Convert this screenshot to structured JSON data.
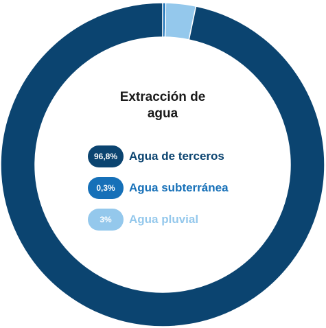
{
  "chart_data": {
    "type": "donut",
    "title": "Extracción de agua",
    "series": [
      {
        "name": "Agua de terceros",
        "color": "#0b4470",
        "values": [
          96.8
        ],
        "value_labels": [
          "96,8%"
        ]
      },
      {
        "name": "Agua subterránea",
        "color": "#1670b8",
        "values": [
          0.3
        ],
        "value_labels": [
          "0,3%"
        ]
      },
      {
        "name": "Agua pluvial",
        "color": "#94c8ec",
        "values": [
          3
        ],
        "value_labels": [
          "3%"
        ]
      }
    ]
  }
}
